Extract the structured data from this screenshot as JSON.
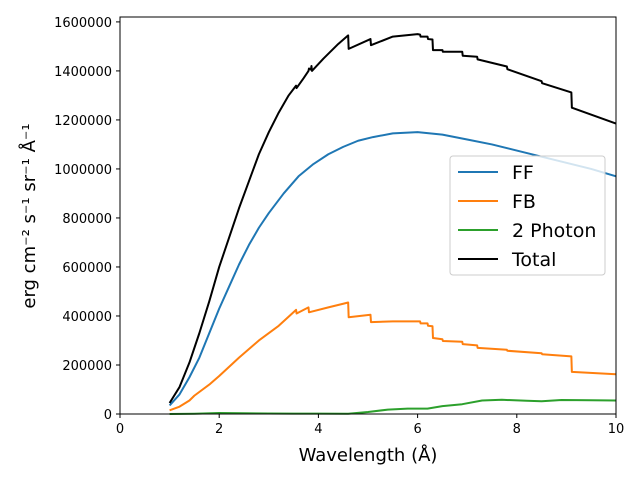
{
  "chart_data": {
    "type": "line",
    "title": "",
    "xlabel": "Wavelength (Å)",
    "ylabel": "erg cm⁻² s⁻¹ sr⁻¹ Å⁻¹",
    "xlim": [
      0,
      10
    ],
    "ylim": [
      0,
      1620000
    ],
    "xticks": [
      0,
      2,
      4,
      6,
      8,
      10
    ],
    "yticks": [
      0,
      200000,
      400000,
      600000,
      800000,
      1000000,
      1200000,
      1400000,
      1600000
    ],
    "grid": false,
    "legend_position": "center-right",
    "series": [
      {
        "name": "FF",
        "color": "#1f77b4",
        "points": [
          [
            1.0,
            35000
          ],
          [
            1.2,
            80000
          ],
          [
            1.4,
            150000
          ],
          [
            1.6,
            230000
          ],
          [
            1.8,
            330000
          ],
          [
            2.0,
            430000
          ],
          [
            2.2,
            520000
          ],
          [
            2.4,
            610000
          ],
          [
            2.6,
            690000
          ],
          [
            2.8,
            760000
          ],
          [
            3.0,
            820000
          ],
          [
            3.3,
            900000
          ],
          [
            3.6,
            970000
          ],
          [
            3.9,
            1020000
          ],
          [
            4.2,
            1060000
          ],
          [
            4.5,
            1090000
          ],
          [
            4.8,
            1115000
          ],
          [
            5.1,
            1130000
          ],
          [
            5.5,
            1145000
          ],
          [
            6.0,
            1150000
          ],
          [
            6.5,
            1140000
          ],
          [
            7.0,
            1120000
          ],
          [
            7.5,
            1100000
          ],
          [
            8.0,
            1075000
          ],
          [
            8.5,
            1050000
          ],
          [
            9.0,
            1025000
          ],
          [
            9.5,
            1000000
          ],
          [
            10.0,
            970000
          ]
        ]
      },
      {
        "name": "FB",
        "color": "#ff7f0e",
        "points": [
          [
            1.0,
            15000
          ],
          [
            1.2,
            30000
          ],
          [
            1.4,
            55000
          ],
          [
            1.5,
            75000
          ],
          [
            1.8,
            120000
          ],
          [
            2.0,
            155000
          ],
          [
            2.4,
            230000
          ],
          [
            2.8,
            300000
          ],
          [
            3.2,
            360000
          ],
          [
            3.55,
            425000
          ],
          [
            3.56,
            410000
          ],
          [
            3.8,
            435000
          ],
          [
            3.81,
            415000
          ],
          [
            4.2,
            435000
          ],
          [
            4.5,
            450000
          ],
          [
            4.6,
            455000
          ],
          [
            4.61,
            395000
          ],
          [
            5.05,
            405000
          ],
          [
            5.06,
            375000
          ],
          [
            5.5,
            378000
          ],
          [
            6.05,
            378000
          ],
          [
            6.06,
            370000
          ],
          [
            6.2,
            370000
          ],
          [
            6.21,
            360000
          ],
          [
            6.3,
            358000
          ],
          [
            6.31,
            310000
          ],
          [
            6.5,
            305000
          ],
          [
            6.51,
            298000
          ],
          [
            6.9,
            295000
          ],
          [
            6.91,
            285000
          ],
          [
            7.2,
            280000
          ],
          [
            7.21,
            270000
          ],
          [
            7.8,
            262000
          ],
          [
            7.81,
            258000
          ],
          [
            8.5,
            248000
          ],
          [
            8.51,
            244000
          ],
          [
            9.1,
            235000
          ],
          [
            9.11,
            172000
          ],
          [
            10.0,
            162000
          ]
        ]
      },
      {
        "name": "2 Photon",
        "color": "#2ca02c",
        "points": [
          [
            1.0,
            0
          ],
          [
            1.5,
            1000
          ],
          [
            2.0,
            4000
          ],
          [
            2.5,
            3000
          ],
          [
            3.0,
            2000
          ],
          [
            3.5,
            1500
          ],
          [
            4.0,
            1500
          ],
          [
            4.6,
            1000
          ],
          [
            5.0,
            8000
          ],
          [
            5.4,
            18000
          ],
          [
            5.8,
            22000
          ],
          [
            6.2,
            22000
          ],
          [
            6.5,
            32000
          ],
          [
            6.9,
            40000
          ],
          [
            7.3,
            55000
          ],
          [
            7.7,
            58000
          ],
          [
            8.2,
            54000
          ],
          [
            8.5,
            52000
          ],
          [
            8.9,
            57000
          ],
          [
            9.5,
            56000
          ],
          [
            10.0,
            55000
          ]
        ]
      },
      {
        "name": "Total",
        "color": "#000000",
        "points": [
          [
            1.0,
            45000
          ],
          [
            1.2,
            110000
          ],
          [
            1.4,
            210000
          ],
          [
            1.6,
            330000
          ],
          [
            1.8,
            460000
          ],
          [
            2.0,
            600000
          ],
          [
            2.2,
            720000
          ],
          [
            2.4,
            840000
          ],
          [
            2.6,
            950000
          ],
          [
            2.8,
            1060000
          ],
          [
            3.0,
            1150000
          ],
          [
            3.2,
            1230000
          ],
          [
            3.4,
            1300000
          ],
          [
            3.55,
            1340000
          ],
          [
            3.56,
            1330000
          ],
          [
            3.7,
            1370000
          ],
          [
            3.8,
            1400000
          ],
          [
            3.81,
            1410000
          ],
          [
            3.85,
            1405000
          ],
          [
            3.86,
            1420000
          ],
          [
            3.87,
            1400000
          ],
          [
            4.1,
            1450000
          ],
          [
            4.4,
            1510000
          ],
          [
            4.6,
            1545000
          ],
          [
            4.61,
            1490000
          ],
          [
            5.05,
            1530000
          ],
          [
            5.06,
            1505000
          ],
          [
            5.5,
            1540000
          ],
          [
            6.0,
            1550000
          ],
          [
            6.05,
            1548000
          ],
          [
            6.06,
            1540000
          ],
          [
            6.2,
            1540000
          ],
          [
            6.21,
            1530000
          ],
          [
            6.3,
            1528000
          ],
          [
            6.31,
            1485000
          ],
          [
            6.5,
            1485000
          ],
          [
            6.51,
            1478000
          ],
          [
            6.9,
            1478000
          ],
          [
            6.91,
            1462000
          ],
          [
            7.2,
            1458000
          ],
          [
            7.21,
            1447000
          ],
          [
            7.8,
            1418000
          ],
          [
            7.81,
            1407000
          ],
          [
            8.5,
            1358000
          ],
          [
            8.51,
            1350000
          ],
          [
            9.1,
            1312000
          ],
          [
            9.11,
            1250000
          ],
          [
            10.0,
            1185000
          ]
        ]
      }
    ]
  }
}
